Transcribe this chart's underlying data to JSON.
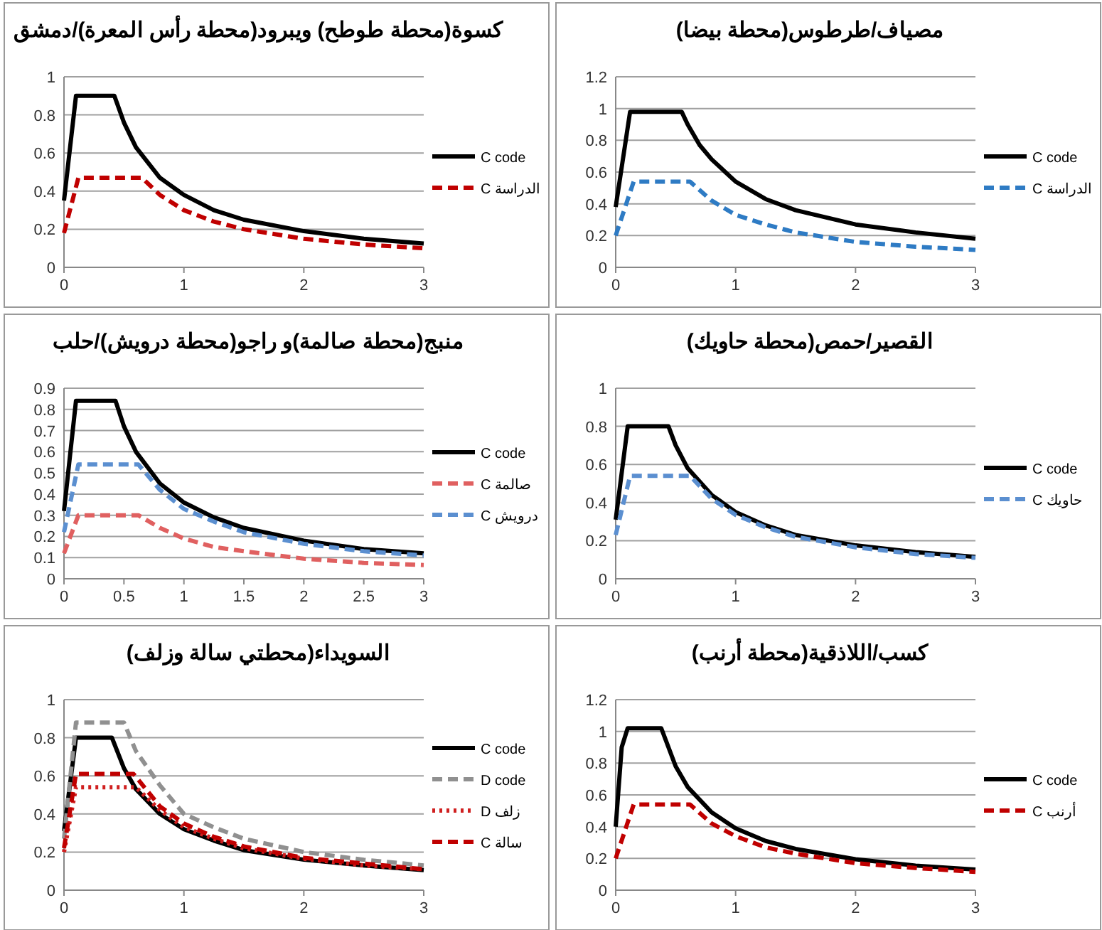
{
  "chart_data": [
    {
      "type": "line",
      "title": "كسوة(محطة طوطح) ويبرود(محطة رأس المعرة)/دمشق",
      "xlim": [
        0,
        3
      ],
      "xticks": [
        0,
        1,
        2,
        3
      ],
      "ylim": [
        0,
        1
      ],
      "yticks": [
        0,
        0.2,
        0.4,
        0.6,
        0.8,
        1
      ],
      "grid": "y",
      "legend": "right",
      "series": [
        {
          "name": "C code",
          "color": "#000000",
          "line_style": "solid",
          "x": [
            0,
            0.1,
            0.42,
            0.5,
            0.6,
            0.8,
            1,
            1.25,
            1.5,
            2,
            2.5,
            3
          ],
          "values": [
            0.35,
            0.9,
            0.9,
            0.76,
            0.63,
            0.47,
            0.38,
            0.3,
            0.25,
            0.19,
            0.15,
            0.125
          ]
        },
        {
          "name": "C الدراسة",
          "color": "#c00000",
          "line_style": "dashed",
          "x": [
            0,
            0.12,
            0.65,
            0.8,
            1,
            1.25,
            1.5,
            2,
            2.5,
            3
          ],
          "values": [
            0.18,
            0.47,
            0.47,
            0.38,
            0.3,
            0.24,
            0.2,
            0.15,
            0.12,
            0.1
          ]
        }
      ]
    },
    {
      "type": "line",
      "title": "مصياف/طرطوس(محطة بيضا)",
      "xlim": [
        0,
        3
      ],
      "xticks": [
        0,
        1,
        2,
        3
      ],
      "ylim": [
        0,
        1.2
      ],
      "yticks": [
        0,
        0.2,
        0.4,
        0.6,
        0.8,
        1,
        1.2
      ],
      "grid": "y",
      "legend": "right",
      "series": [
        {
          "name": "C code",
          "color": "#000000",
          "line_style": "solid",
          "x": [
            0,
            0.12,
            0.55,
            0.6,
            0.7,
            0.8,
            1,
            1.25,
            1.5,
            2,
            2.5,
            3
          ],
          "values": [
            0.38,
            0.98,
            0.98,
            0.9,
            0.77,
            0.68,
            0.54,
            0.43,
            0.36,
            0.27,
            0.22,
            0.18
          ]
        },
        {
          "name": "C الدراسة",
          "color": "#2e7bc4",
          "line_style": "dashed",
          "x": [
            0,
            0.15,
            0.62,
            0.8,
            1,
            1.25,
            1.5,
            2,
            2.5,
            3
          ],
          "values": [
            0.2,
            0.54,
            0.54,
            0.42,
            0.33,
            0.27,
            0.22,
            0.16,
            0.13,
            0.11
          ]
        }
      ]
    },
    {
      "type": "line",
      "title": "منبج(محطة صالمة)و راجو(محطة درويش)/حلب",
      "xlim": [
        0,
        3
      ],
      "xticks": [
        0,
        0.5,
        1,
        1.5,
        2,
        2.5,
        3
      ],
      "ylim": [
        0,
        0.9
      ],
      "yticks": [
        0,
        0.1,
        0.2,
        0.3,
        0.4,
        0.5,
        0.6,
        0.7,
        0.8,
        0.9
      ],
      "grid": "y",
      "legend": "right",
      "series": [
        {
          "name": "C code",
          "color": "#000000",
          "line_style": "solid",
          "x": [
            0,
            0.1,
            0.43,
            0.5,
            0.6,
            0.8,
            1,
            1.25,
            1.5,
            2,
            2.5,
            3
          ],
          "values": [
            0.32,
            0.84,
            0.84,
            0.72,
            0.6,
            0.45,
            0.36,
            0.29,
            0.24,
            0.18,
            0.14,
            0.12
          ]
        },
        {
          "name": "C صالمة",
          "color": "#e06060",
          "line_style": "dashed",
          "x": [
            0,
            0.12,
            0.62,
            0.8,
            1,
            1.25,
            1.5,
            2,
            2.5,
            3
          ],
          "values": [
            0.12,
            0.3,
            0.3,
            0.24,
            0.19,
            0.15,
            0.13,
            0.095,
            0.075,
            0.065
          ]
        },
        {
          "name": "C درويش",
          "color": "#5b8fd0",
          "line_style": "dashed",
          "x": [
            0,
            0.12,
            0.62,
            0.8,
            1,
            1.25,
            1.5,
            2,
            2.5,
            3
          ],
          "values": [
            0.22,
            0.54,
            0.54,
            0.42,
            0.33,
            0.27,
            0.22,
            0.165,
            0.13,
            0.11
          ]
        }
      ]
    },
    {
      "type": "line",
      "title": "القصير/حمص(محطة حاويك)",
      "xlim": [
        0,
        3
      ],
      "xticks": [
        0,
        1,
        2,
        3
      ],
      "ylim": [
        0,
        1
      ],
      "yticks": [
        0,
        0.2,
        0.4,
        0.6,
        0.8,
        1
      ],
      "grid": "y",
      "legend": "right",
      "series": [
        {
          "name": "C code",
          "color": "#000000",
          "line_style": "solid",
          "x": [
            0,
            0.1,
            0.44,
            0.5,
            0.6,
            0.8,
            1,
            1.25,
            1.5,
            2,
            2.5,
            3
          ],
          "values": [
            0.31,
            0.8,
            0.8,
            0.7,
            0.58,
            0.44,
            0.35,
            0.28,
            0.23,
            0.175,
            0.14,
            0.115
          ]
        },
        {
          "name": "C حاويك",
          "color": "#5b8fd0",
          "line_style": "dashed",
          "x": [
            0,
            0.12,
            0.62,
            0.8,
            1,
            1.25,
            1.5,
            2,
            2.5,
            3
          ],
          "values": [
            0.23,
            0.54,
            0.54,
            0.42,
            0.335,
            0.27,
            0.22,
            0.165,
            0.13,
            0.11
          ]
        }
      ]
    },
    {
      "type": "line",
      "title": "السويداء(محطتي سالة وزلف)",
      "xlim": [
        0,
        3
      ],
      "xticks": [
        0,
        1,
        2,
        3
      ],
      "ylim": [
        0,
        1
      ],
      "yticks": [
        0,
        0.2,
        0.4,
        0.6,
        0.8,
        1
      ],
      "grid": "y",
      "legend": "right",
      "series": [
        {
          "name": "C code",
          "color": "#000000",
          "line_style": "solid",
          "x": [
            0,
            0.1,
            0.4,
            0.5,
            0.6,
            0.8,
            1,
            1.25,
            1.5,
            2,
            2.5,
            3
          ],
          "values": [
            0.31,
            0.8,
            0.8,
            0.64,
            0.53,
            0.4,
            0.32,
            0.26,
            0.21,
            0.16,
            0.13,
            0.105
          ]
        },
        {
          "name": "D code",
          "color": "#909090",
          "line_style": "dashed",
          "x": [
            0,
            0.1,
            0.5,
            0.6,
            0.8,
            1,
            1.25,
            1.5,
            2,
            2.5,
            3
          ],
          "values": [
            0.27,
            0.88,
            0.88,
            0.73,
            0.55,
            0.4,
            0.33,
            0.27,
            0.2,
            0.16,
            0.13
          ]
        },
        {
          "name": "D زلف",
          "color": "#d02020",
          "line_style": "dotted",
          "x": [
            0,
            0.1,
            0.6,
            0.8,
            1,
            1.25,
            1.5,
            2,
            2.5,
            3
          ],
          "values": [
            0.2,
            0.54,
            0.54,
            0.42,
            0.33,
            0.27,
            0.22,
            0.165,
            0.13,
            0.11
          ]
        },
        {
          "name": "C سالة",
          "color": "#c00000",
          "line_style": "dashed",
          "x": [
            0,
            0.1,
            0.58,
            0.8,
            1,
            1.25,
            1.5,
            2,
            2.5,
            3
          ],
          "values": [
            0.22,
            0.61,
            0.61,
            0.44,
            0.35,
            0.28,
            0.23,
            0.17,
            0.14,
            0.11
          ]
        }
      ]
    },
    {
      "type": "line",
      "title": "كسب/اللاذقية(محطة أرنب)",
      "xlim": [
        0,
        3
      ],
      "xticks": [
        0,
        1,
        2,
        3
      ],
      "ylim": [
        0,
        1.2
      ],
      "yticks": [
        0,
        0.2,
        0.4,
        0.6,
        0.8,
        1,
        1.2
      ],
      "grid": "y",
      "legend": "right",
      "series": [
        {
          "name": "C code",
          "color": "#000000",
          "line_style": "solid",
          "x": [
            0,
            0.05,
            0.1,
            0.38,
            0.5,
            0.6,
            0.8,
            1,
            1.25,
            1.5,
            2,
            2.5,
            3
          ],
          "values": [
            0.4,
            0.9,
            1.02,
            1.02,
            0.78,
            0.65,
            0.49,
            0.39,
            0.31,
            0.26,
            0.195,
            0.155,
            0.13
          ]
        },
        {
          "name": "C أرنب",
          "color": "#c00000",
          "line_style": "dashed",
          "x": [
            0,
            0.15,
            0.62,
            0.8,
            1,
            1.25,
            1.5,
            2,
            2.5,
            3
          ],
          "values": [
            0.2,
            0.54,
            0.54,
            0.42,
            0.34,
            0.27,
            0.23,
            0.17,
            0.14,
            0.115
          ]
        }
      ]
    }
  ]
}
